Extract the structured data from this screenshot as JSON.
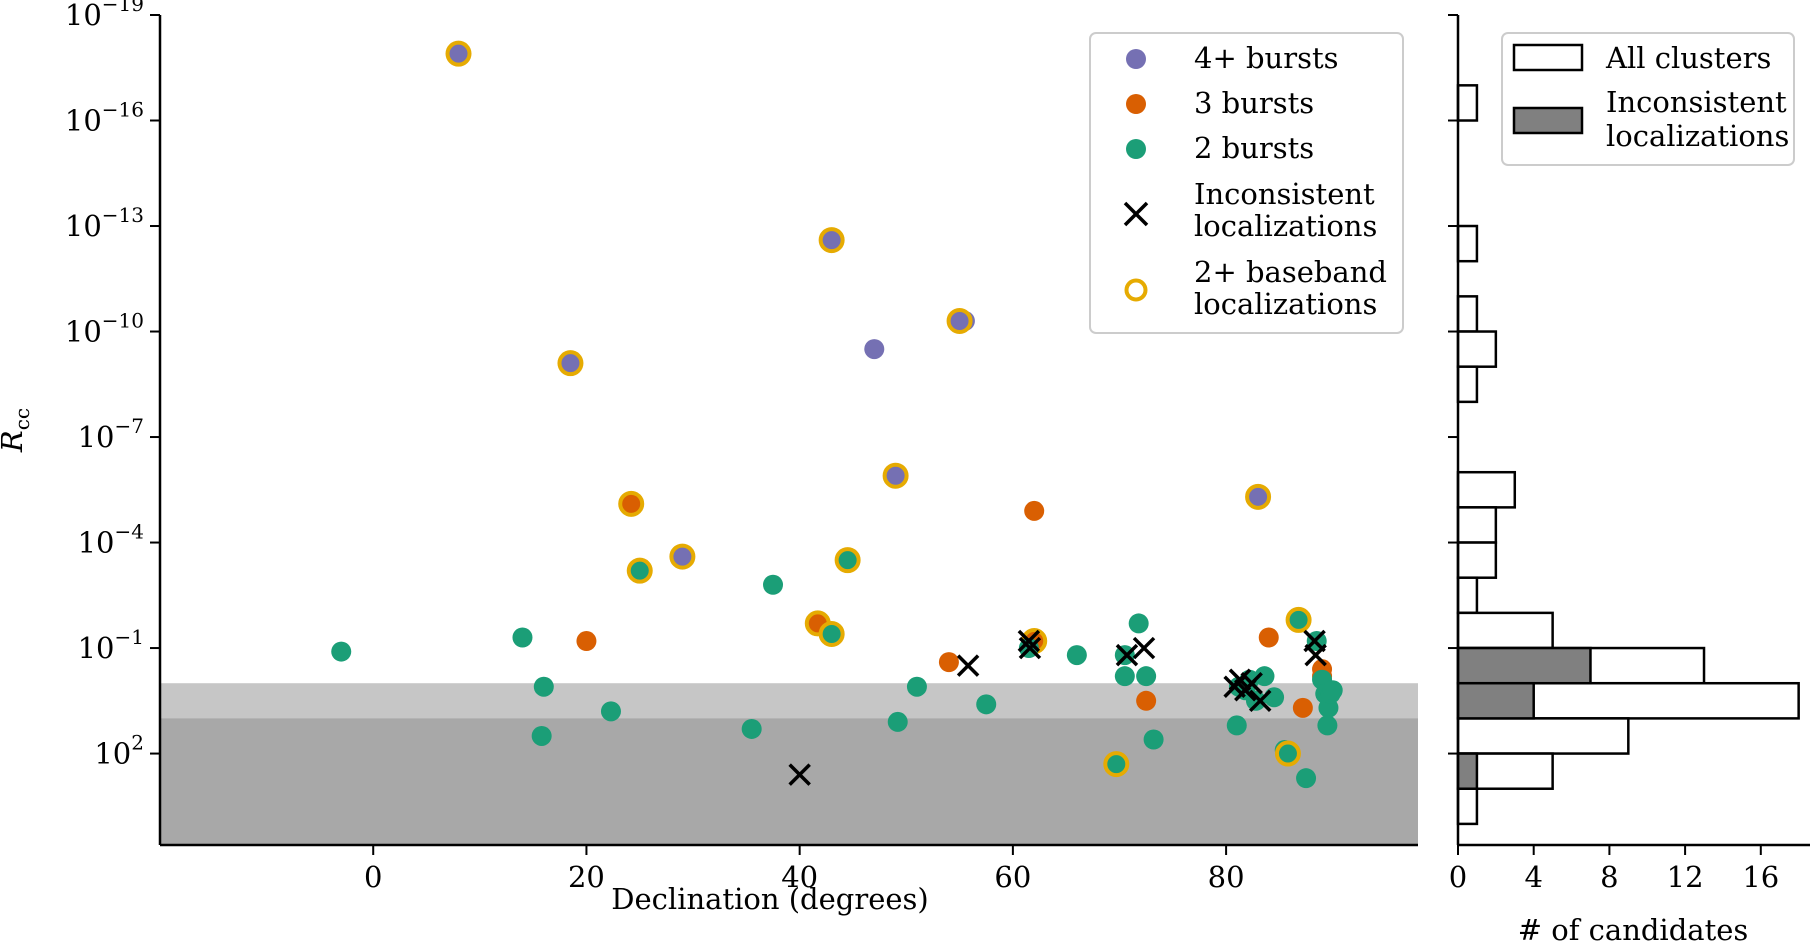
{
  "chart_data": [
    {
      "type": "scatter",
      "xlabel": "Declination (degrees)",
      "ylabel": "R_cc",
      "ylabel_main": "R",
      "ylabel_sub": "cc",
      "yscale": "log",
      "xlim": [
        -20,
        98
      ],
      "ylim_log10": [
        4.6,
        -19
      ],
      "x_ticks": [
        0,
        20,
        40,
        60,
        80
      ],
      "x_tick_labels": [
        "0",
        "20",
        "40",
        "60",
        "80"
      ],
      "y_ticks_log10": [
        -19,
        -16,
        -13,
        -10,
        -7,
        -4,
        -1,
        2
      ],
      "y_tick_bases": [
        "10",
        "10",
        "10",
        "10",
        "10",
        "10",
        "10",
        "10"
      ],
      "y_tick_exps": [
        "−19",
        "−16",
        "−13",
        "−10",
        "−7",
        "−4",
        "−1",
        "2"
      ],
      "shaded_bands_log10": [
        {
          "from": 0,
          "to": 4.6,
          "color": "#c6c6c6"
        },
        {
          "from": 1,
          "to": 4.6,
          "color": "#a8a8a8"
        }
      ],
      "legend": {
        "placement": "top-right",
        "entries": [
          {
            "label": "4+ bursts",
            "marker": "dot",
            "color": "#7570b3"
          },
          {
            "label": "3 bursts",
            "marker": "dot",
            "color": "#d95f02"
          },
          {
            "label": "2 bursts",
            "marker": "dot",
            "color": "#1b9e77"
          },
          {
            "label": "Inconsistent",
            "label2": "localizations",
            "marker": "x",
            "color": "#000000"
          },
          {
            "label": "2+ baseband",
            "label2": "localizations",
            "marker": "ring",
            "color": "#e6ab02"
          }
        ]
      },
      "series": [
        {
          "name": "4+ bursts",
          "color": "#7570b3",
          "x": [
            8,
            18.5,
            43,
            47,
            55.5,
            55,
            49,
            83,
            29
          ],
          "y_log10": [
            -17.9,
            -9.1,
            -12.6,
            -9.5,
            -10.3,
            -10.3,
            -5.9,
            -5.3,
            -3.6
          ],
          "baseband": [
            true,
            true,
            true,
            false,
            false,
            true,
            true,
            true,
            true
          ]
        },
        {
          "name": "3 bursts",
          "color": "#d95f02",
          "x": [
            24.2,
            20,
            41.7,
            54,
            62,
            62,
            72.5,
            84,
            87.2,
            89,
            89
          ],
          "y_log10": [
            -5.1,
            -1.2,
            -1.7,
            -0.6,
            -4.9,
            -1.2,
            0.5,
            -1.3,
            0.7,
            -0.4,
            -0.2
          ],
          "baseband": [
            true,
            false,
            true,
            false,
            false,
            true,
            false,
            false,
            false,
            false,
            false
          ]
        },
        {
          "name": "2 bursts",
          "color": "#1b9e77",
          "x": [
            -3,
            14,
            16,
            15.8,
            22.3,
            25,
            35.5,
            37.5,
            43,
            44.5,
            49.2,
            51,
            57.5,
            61.5,
            66,
            70.5,
            70.5,
            71.8,
            72.5,
            73.2,
            69.7,
            81,
            81.2,
            81.8,
            82.2,
            82.8,
            83.6,
            84.5,
            85.5,
            85.8,
            86.8,
            87.5,
            88.5,
            89,
            89.3,
            89.6,
            89.8,
            89.5,
            90
          ],
          "y_log10": [
            -0.9,
            -1.3,
            0.1,
            1.5,
            0.8,
            -3.2,
            1.3,
            -2.8,
            -1.4,
            -3.5,
            1.1,
            0.1,
            0.6,
            -1.0,
            -0.8,
            -0.2,
            -0.8,
            -1.7,
            -0.2,
            1.6,
            2.3,
            1.2,
            0.1,
            0.2,
            -0.1,
            0.5,
            -0.2,
            0.4,
            1.9,
            2.0,
            -1.8,
            2.7,
            -1.2,
            -0.1,
            0.3,
            0.7,
            0.3,
            1.2,
            0.2
          ],
          "baseband": [
            false,
            false,
            false,
            false,
            false,
            true,
            false,
            false,
            true,
            true,
            false,
            false,
            false,
            false,
            false,
            false,
            false,
            false,
            false,
            false,
            true,
            false,
            false,
            false,
            false,
            false,
            false,
            false,
            false,
            true,
            true,
            false,
            false,
            false,
            false,
            false,
            false,
            false,
            false
          ]
        }
      ],
      "inconsistent_x": [
        {
          "x": 40,
          "y_log10": 2.6
        },
        {
          "x": 55.8,
          "y_log10": -0.5
        },
        {
          "x": 61.5,
          "y_log10": -1.2
        },
        {
          "x": 61.6,
          "y_log10": -1.0
        },
        {
          "x": 70.7,
          "y_log10": -0.8
        },
        {
          "x": 72.3,
          "y_log10": -1.0
        },
        {
          "x": 80.8,
          "y_log10": 0.1
        },
        {
          "x": 81.3,
          "y_log10": -0.1
        },
        {
          "x": 81.8,
          "y_log10": 0.2
        },
        {
          "x": 82.4,
          "y_log10": 0.0
        },
        {
          "x": 83.2,
          "y_log10": 0.5
        },
        {
          "x": 88.3,
          "y_log10": -1.2
        },
        {
          "x": 88.4,
          "y_log10": -0.8
        }
      ]
    },
    {
      "type": "histogram",
      "orientation": "horizontal",
      "xlabel": "# of candidates",
      "xlim": [
        0,
        18.6
      ],
      "x_ticks": [
        0,
        4,
        8,
        12,
        16
      ],
      "x_tick_labels": [
        "0",
        "4",
        "8",
        "12",
        "16"
      ],
      "bin_edges_log10": [
        -19,
        -18,
        -17,
        -16,
        -15,
        -14,
        -13,
        -12,
        -11,
        -10,
        -9,
        -8,
        -7,
        -6,
        -5,
        -4,
        -3,
        -2,
        -1,
        0,
        1,
        2,
        3,
        4,
        5
      ],
      "series": [
        {
          "name": "All clusters",
          "fill": "#ffffff",
          "counts": [
            0,
            0,
            1,
            0,
            0,
            0,
            1,
            0,
            1,
            2,
            1,
            0,
            0,
            3,
            2,
            2,
            1,
            5,
            13,
            18,
            9,
            5,
            1,
            0
          ]
        },
        {
          "name": "Inconsistent localizations",
          "fill": "#808080",
          "counts": [
            0,
            0,
            0,
            0,
            0,
            0,
            0,
            0,
            0,
            0,
            0,
            0,
            0,
            0,
            0,
            0,
            0,
            0,
            7,
            4,
            0,
            1,
            0,
            0
          ]
        }
      ],
      "legend": {
        "placement": "top-right",
        "entries": [
          {
            "label": "All clusters",
            "fill": "#ffffff"
          },
          {
            "label": "Inconsistent",
            "label2": "localizations",
            "fill": "#808080"
          }
        ]
      }
    }
  ]
}
